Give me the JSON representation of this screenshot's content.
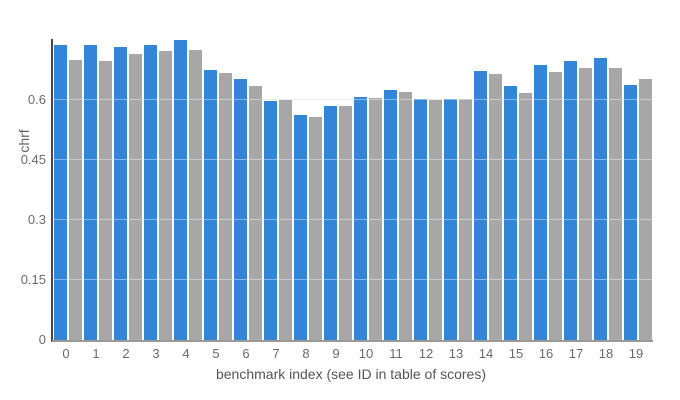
{
  "chart_data": {
    "type": "bar",
    "title": "",
    "xlabel": "benchmark index (see ID in table of scores)",
    "ylabel": "chrf",
    "categories": [
      "0",
      "1",
      "2",
      "3",
      "4",
      "5",
      "6",
      "7",
      "8",
      "9",
      "10",
      "11",
      "12",
      "13",
      "14",
      "15",
      "16",
      "17",
      "18",
      "19"
    ],
    "series": [
      {
        "name": "blue",
        "color": "#3385d8",
        "values": [
          0.737,
          0.738,
          0.732,
          0.737,
          0.75,
          0.675,
          0.652,
          0.597,
          0.563,
          0.585,
          0.608,
          0.625,
          0.602,
          0.602,
          0.673,
          0.634,
          0.687,
          0.697,
          0.704,
          0.637
        ]
      },
      {
        "name": "gray",
        "color": "#a7a7a7",
        "values": [
          0.7,
          0.698,
          0.714,
          0.722,
          0.725,
          0.668,
          0.634,
          0.6,
          0.558,
          0.586,
          0.605,
          0.62,
          0.6,
          0.602,
          0.665,
          0.617,
          0.671,
          0.679,
          0.681,
          0.652
        ]
      }
    ],
    "yticks": [
      0,
      0.15,
      0.3,
      0.45,
      0.6
    ],
    "ytick_labels": [
      "0",
      "0.15",
      "0.3",
      "0.45",
      "0.6"
    ],
    "ylim": [
      0,
      0.7525
    ],
    "grid": true,
    "legend_position": "none",
    "axis_colors": {
      "y_axis_line": "#474747",
      "x_axis_line": "#999999",
      "gridline": "#e0e0e0",
      "tick_text": "#6a6a6a"
    }
  }
}
